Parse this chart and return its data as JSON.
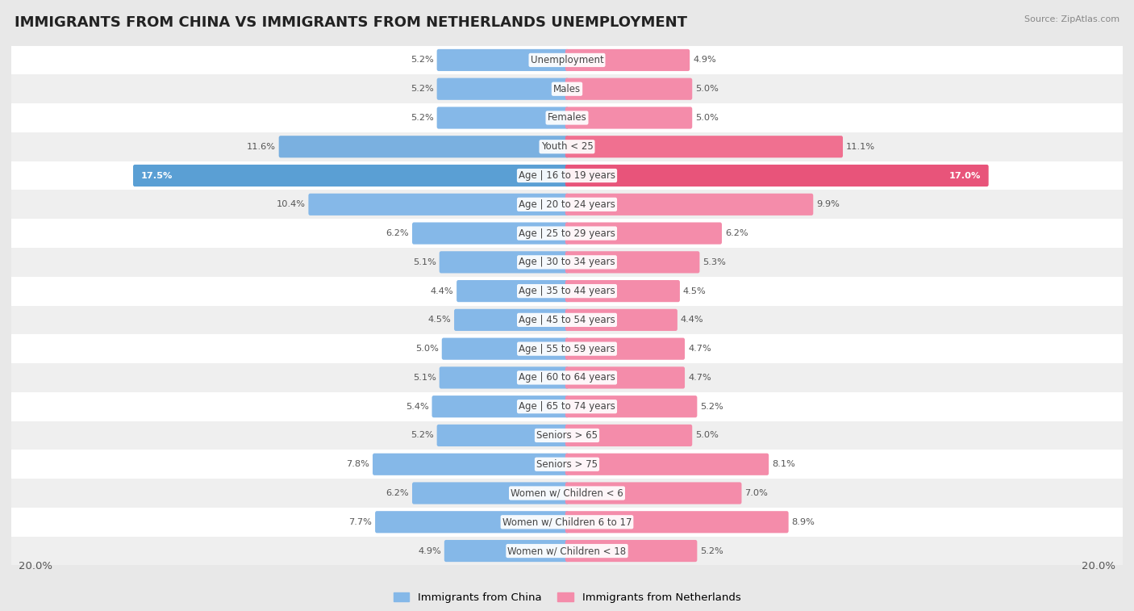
{
  "title": "IMMIGRANTS FROM CHINA VS IMMIGRANTS FROM NETHERLANDS UNEMPLOYMENT",
  "source": "Source: ZipAtlas.com",
  "categories": [
    "Unemployment",
    "Males",
    "Females",
    "Youth < 25",
    "Age | 16 to 19 years",
    "Age | 20 to 24 years",
    "Age | 25 to 29 years",
    "Age | 30 to 34 years",
    "Age | 35 to 44 years",
    "Age | 45 to 54 years",
    "Age | 55 to 59 years",
    "Age | 60 to 64 years",
    "Age | 65 to 74 years",
    "Seniors > 65",
    "Seniors > 75",
    "Women w/ Children < 6",
    "Women w/ Children 6 to 17",
    "Women w/ Children < 18"
  ],
  "china_values": [
    5.2,
    5.2,
    5.2,
    11.6,
    17.5,
    10.4,
    6.2,
    5.1,
    4.4,
    4.5,
    5.0,
    5.1,
    5.4,
    5.2,
    7.8,
    6.2,
    7.7,
    4.9
  ],
  "netherlands_values": [
    4.9,
    5.0,
    5.0,
    11.1,
    17.0,
    9.9,
    6.2,
    5.3,
    4.5,
    4.4,
    4.7,
    4.7,
    5.2,
    5.0,
    8.1,
    7.0,
    8.9,
    5.2
  ],
  "china_color": "#85b8e8",
  "netherlands_color": "#f48caa",
  "china_highlight_color": "#5a9fd4",
  "netherlands_highlight_color": "#e8547a",
  "background_color": "#e8e8e8",
  "max_value": 20.0,
  "legend_china": "Immigrants from China",
  "legend_netherlands": "Immigrants from Netherlands",
  "title_fontsize": 13,
  "label_fontsize": 8.5,
  "value_fontsize": 8.2
}
